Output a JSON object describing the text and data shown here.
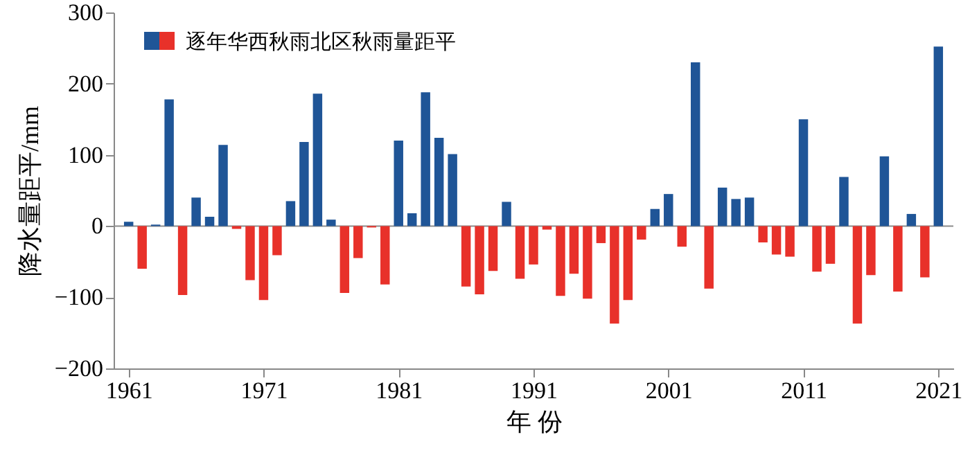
{
  "chart_data": {
    "type": "bar",
    "xlabel": "年 份",
    "ylabel": "降水量距平/mm",
    "legend": "top left",
    "x": [
      1961,
      1962,
      1963,
      1964,
      1965,
      1966,
      1967,
      1968,
      1969,
      1970,
      1971,
      1972,
      1973,
      1974,
      1975,
      1976,
      1977,
      1978,
      1979,
      1980,
      1981,
      1982,
      1983,
      1984,
      1985,
      1986,
      1987,
      1988,
      1989,
      1990,
      1991,
      1992,
      1993,
      1994,
      1995,
      1996,
      1997,
      1998,
      1999,
      2000,
      2001,
      2002,
      2003,
      2004,
      2005,
      2006,
      2007,
      2008,
      2009,
      2010,
      2011,
      2012,
      2013,
      2014,
      2015,
      2016,
      2017,
      2018,
      2019,
      2020,
      2021
    ],
    "series": [
      {
        "name": "逐年华西秋雨北区秋雨量距平",
        "values": [
          6,
          -60,
          2,
          178,
          -97,
          40,
          13,
          114,
          -4,
          -76,
          -104,
          -41,
          35,
          118,
          186,
          9,
          -94,
          -45,
          -2,
          -82,
          120,
          18,
          188,
          124,
          101,
          -85,
          -96,
          -63,
          34,
          -74,
          -54,
          -5,
          -98,
          -67,
          -102,
          -24,
          -137,
          -104,
          -19,
          24,
          45,
          -29,
          230,
          -88,
          54,
          38,
          40,
          -23,
          -40,
          -43,
          150,
          -64,
          -53,
          69,
          -137,
          -69,
          98,
          -92,
          17,
          -72,
          252
        ],
        "colors": [
          "#1f5597",
          "#e8312a",
          "#1f5597",
          "#1f5597",
          "#e8312a",
          "#1f5597",
          "#1f5597",
          "#1f5597",
          "#e8312a",
          "#e8312a",
          "#e8312a",
          "#e8312a",
          "#1f5597",
          "#1f5597",
          "#1f5597",
          "#1f5597",
          "#e8312a",
          "#e8312a",
          "#e8312a",
          "#e8312a",
          "#1f5597",
          "#1f5597",
          "#1f5597",
          "#1f5597",
          "#1f5597",
          "#e8312a",
          "#e8312a",
          "#e8312a",
          "#1f5597",
          "#e8312a",
          "#e8312a",
          "#e8312a",
          "#e8312a",
          "#e8312a",
          "#e8312a",
          "#e8312a",
          "#e8312a",
          "#e8312a",
          "#e8312a",
          "#1f5597",
          "#1f5597",
          "#e8312a",
          "#1f5597",
          "#e8312a",
          "#1f5597",
          "#1f5597",
          "#1f5597",
          "#e8312a",
          "#e8312a",
          "#e8312a",
          "#1f5597",
          "#e8312a",
          "#e8312a",
          "#1f5597",
          "#e8312a",
          "#e8312a",
          "#1f5597",
          "#e8312a",
          "#1f5597",
          "#e8312a",
          "#1f5597"
        ]
      }
    ],
    "xlim": [
      1960.4,
      2021.6
    ],
    "xticks": [
      1961,
      1971,
      1981,
      1991,
      2001,
      2011,
      2021
    ],
    "ylim": [
      -200,
      300
    ],
    "yticks": [
      -200,
      -100,
      0,
      100,
      200,
      300
    ],
    "ref_lines": [
      {
        "axis": "y",
        "value": 0,
        "color": "#8c8c8c"
      }
    ],
    "grid": false
  }
}
